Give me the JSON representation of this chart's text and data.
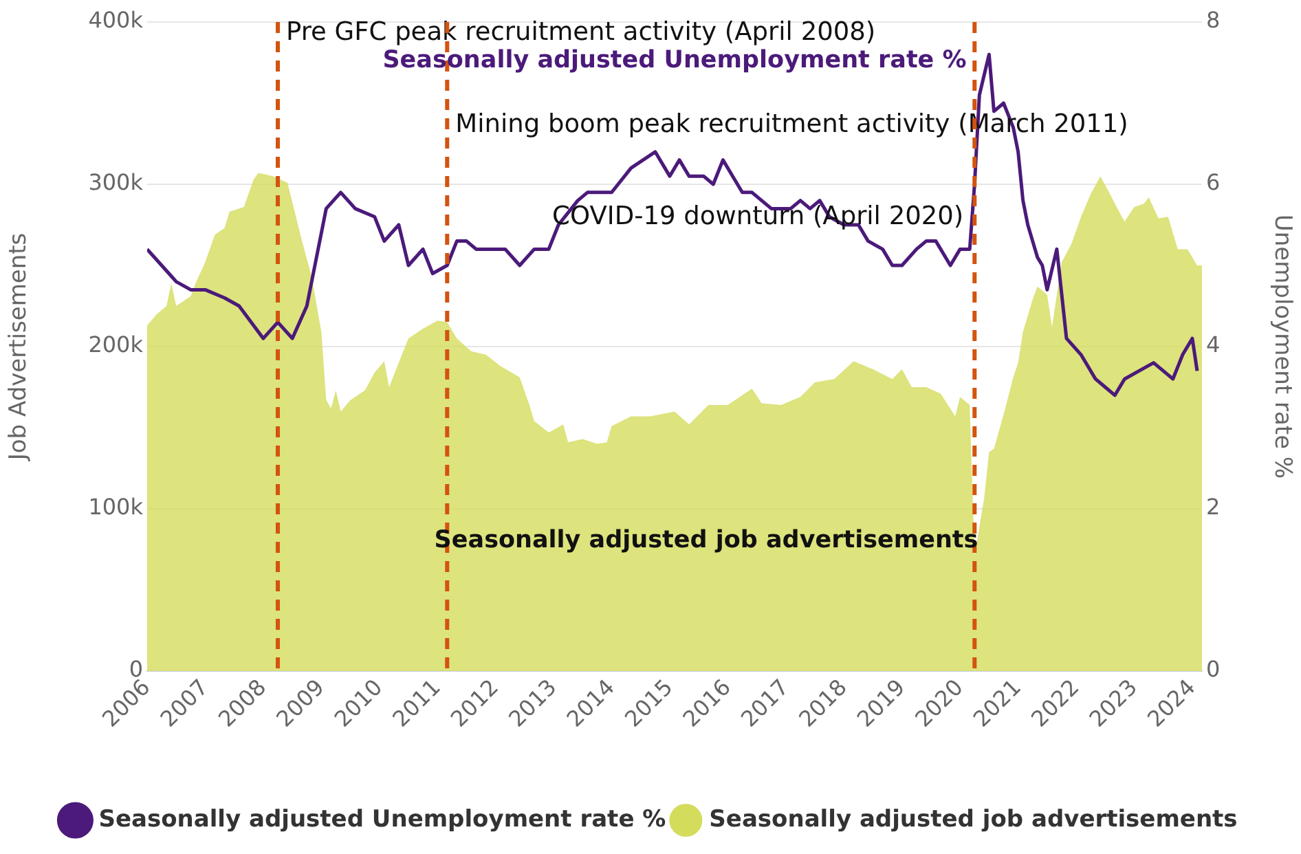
{
  "chart_data": {
    "type": "line",
    "xlabel": null,
    "ylabel": "Job Advertisements",
    "y2label": "Unemployment rate %",
    "xlim": [
      "2006-01",
      "2024-03"
    ],
    "xticks": [
      "2006",
      "2007",
      "2008",
      "2009",
      "2010",
      "2011",
      "2012",
      "2013",
      "2014",
      "2015",
      "2016",
      "2017",
      "2018",
      "2019",
      "2020",
      "2021",
      "2022",
      "2023",
      "2024"
    ],
    "ylim": [
      0,
      400000
    ],
    "yticks": [
      {
        "value": 0,
        "label": "0"
      },
      {
        "value": 100000,
        "label": "100k"
      },
      {
        "value": 200000,
        "label": "200k"
      },
      {
        "value": 300000,
        "label": "300k"
      },
      {
        "value": 400000,
        "label": "400k"
      }
    ],
    "y2lim": [
      0,
      8
    ],
    "y2ticks": [
      0,
      2,
      4,
      6,
      8
    ],
    "grid": "y",
    "legend": "bottom",
    "marker": "none",
    "line_style": "solid",
    "series": [
      {
        "name": "Seasonally adjusted Unemployment rate %",
        "axis": "y2",
        "color": "#4b1a7a",
        "x": [
          "2006-01",
          "2006-04",
          "2006-07",
          "2006-10",
          "2007-01",
          "2007-05",
          "2007-08",
          "2008-01",
          "2008-04",
          "2008-07",
          "2008-10",
          "2009-02",
          "2009-05",
          "2009-08",
          "2009-12",
          "2010-02",
          "2010-05",
          "2010-07",
          "2010-10",
          "2010-12",
          "2011-03",
          "2011-05",
          "2011-07",
          "2011-09",
          "2012-03",
          "2012-06",
          "2012-09",
          "2012-12",
          "2013-02",
          "2013-06",
          "2013-08",
          "2014-01",
          "2014-05",
          "2014-10",
          "2014-12",
          "2015-01",
          "2015-03",
          "2015-05",
          "2015-08",
          "2015-10",
          "2015-12",
          "2016-02",
          "2016-04",
          "2016-06",
          "2016-08",
          "2016-10",
          "2016-12",
          "2017-02",
          "2017-04",
          "2017-06",
          "2017-08",
          "2017-10",
          "2018-01",
          "2018-04",
          "2018-06",
          "2018-09",
          "2018-11",
          "2019-01",
          "2019-04",
          "2019-06",
          "2019-08",
          "2019-11",
          "2020-01",
          "2020-03",
          "2020-04",
          "2020-05",
          "2020-07",
          "2020-08",
          "2020-10",
          "2020-12",
          "2021-01",
          "2021-02",
          "2021-03",
          "2021-05",
          "2021-06",
          "2021-07",
          "2021-09",
          "2021-11",
          "2022-02",
          "2022-05",
          "2022-07",
          "2022-09",
          "2022-11",
          "2023-02",
          "2023-05",
          "2023-07",
          "2023-09",
          "2023-11",
          "2024-01",
          "2024-02"
        ],
        "values": [
          5.2,
          5.0,
          4.8,
          4.7,
          4.7,
          4.6,
          4.5,
          4.1,
          4.3,
          4.1,
          4.5,
          5.7,
          5.9,
          5.7,
          5.6,
          5.3,
          5.5,
          5.0,
          5.2,
          4.9,
          5.0,
          5.3,
          5.3,
          5.2,
          5.2,
          5.0,
          5.2,
          5.2,
          5.5,
          5.8,
          5.9,
          5.9,
          6.2,
          6.4,
          6.2,
          6.1,
          6.3,
          6.1,
          6.1,
          6.0,
          6.3,
          6.1,
          5.9,
          5.9,
          5.8,
          5.7,
          5.7,
          5.7,
          5.8,
          5.7,
          5.8,
          5.6,
          5.5,
          5.5,
          5.3,
          5.2,
          5.0,
          5.0,
          5.2,
          5.3,
          5.3,
          5.0,
          5.2,
          5.2,
          6.0,
          7.1,
          7.6,
          6.9,
          7.0,
          6.7,
          6.4,
          5.8,
          5.5,
          5.1,
          5.0,
          4.7,
          5.2,
          4.1,
          3.9,
          3.6,
          3.5,
          3.4,
          3.6,
          3.7,
          3.8,
          3.7,
          3.6,
          3.9,
          4.1,
          3.7
        ]
      },
      {
        "name": "Seasonally adjusted job advertisements",
        "type": "area",
        "color": "#d4dc5c",
        "x": [
          "2006-01",
          "2006-03",
          "2006-05",
          "2006-06",
          "2006-07",
          "2006-10",
          "2006-11",
          "2007-01",
          "2007-03",
          "2007-05",
          "2007-06",
          "2007-09",
          "2007-11",
          "2007-12",
          "2008-03",
          "2008-06",
          "2008-09",
          "2008-11",
          "2009-01",
          "2009-02",
          "2009-03",
          "2009-04",
          "2009-05",
          "2009-07",
          "2009-10",
          "2009-12",
          "2010-02",
          "2010-03",
          "2010-05",
          "2010-07",
          "2010-10",
          "2011-01",
          "2011-03",
          "2011-05",
          "2011-08",
          "2011-11",
          "2012-02",
          "2012-06",
          "2012-08",
          "2012-09",
          "2012-12",
          "2013-03",
          "2013-04",
          "2013-07",
          "2013-10",
          "2013-12",
          "2014-01",
          "2014-05",
          "2014-09",
          "2015-02",
          "2015-05",
          "2015-09",
          "2016-01",
          "2016-06",
          "2016-08",
          "2016-12",
          "2017-04",
          "2017-07",
          "2017-11",
          "2018-03",
          "2018-07",
          "2018-11",
          "2019-01",
          "2019-03",
          "2019-06",
          "2019-09",
          "2019-12",
          "2020-01",
          "2020-03",
          "2020-04",
          "2020-06",
          "2020-07",
          "2020-08",
          "2020-10",
          "2020-12",
          "2021-01",
          "2021-02",
          "2021-04",
          "2021-05",
          "2021-07",
          "2021-08",
          "2021-10",
          "2021-12",
          "2022-02",
          "2022-04",
          "2022-06",
          "2022-08",
          "2022-09",
          "2022-11",
          "2023-01",
          "2023-03",
          "2023-04",
          "2023-06",
          "2023-08",
          "2023-10",
          "2023-12",
          "2024-02",
          "2024-03"
        ],
        "values": [
          213000,
          220000,
          225000,
          239000,
          225000,
          231000,
          239000,
          252000,
          269000,
          273000,
          283000,
          286000,
          303000,
          307000,
          305000,
          301000,
          265000,
          243000,
          209000,
          167000,
          162000,
          173000,
          160000,
          167000,
          173000,
          184000,
          191000,
          175000,
          190000,
          205000,
          211000,
          216000,
          215000,
          205000,
          197000,
          195000,
          188000,
          181000,
          164000,
          154000,
          147000,
          152000,
          141000,
          143000,
          140000,
          141000,
          151000,
          157000,
          157000,
          160000,
          152000,
          164000,
          164000,
          174000,
          165000,
          164000,
          169000,
          178000,
          180000,
          191000,
          186000,
          180000,
          186000,
          175000,
          175000,
          171000,
          157000,
          169000,
          164000,
          71000,
          107000,
          135000,
          137000,
          158000,
          181000,
          190000,
          209000,
          229000,
          237000,
          232000,
          212000,
          252000,
          263000,
          280000,
          294000,
          305000,
          294000,
          288000,
          277000,
          286000,
          288000,
          292000,
          279000,
          280000,
          260000,
          260000,
          250000,
          250000
        ]
      }
    ],
    "ref_lines": [
      {
        "axis": "x",
        "value": "2008-04",
        "label": "Pre GFC peak recruitment activity (April 2008)",
        "color": "#d4530f",
        "line_style": "dashed"
      },
      {
        "axis": "x",
        "value": "2011-03",
        "label": "Mining boom peak recruitment activity (March 2011)",
        "color": "#d4530f",
        "line_style": "dashed"
      },
      {
        "axis": "x",
        "value": "2020-04",
        "label": "COVID-19 downturn (April 2020)",
        "color": "#d4530f",
        "line_style": "dashed"
      }
    ],
    "annotations": [
      "Seasonally adjusted Unemployment rate %",
      "Seasonally adjusted job advertisements"
    ]
  }
}
